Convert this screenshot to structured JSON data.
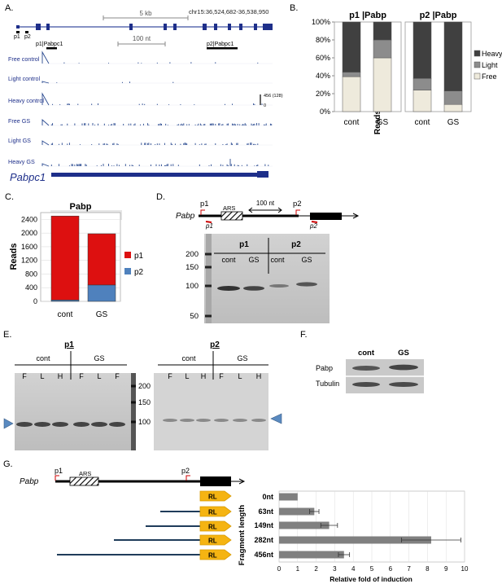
{
  "panel_letters": {
    "a": "A.",
    "b": "B.",
    "c": "C.",
    "d": "D.",
    "e": "E.",
    "f": "F.",
    "g": "G."
  },
  "panel_a": {
    "coords": "chr15:36,524,682-36,538,950",
    "scale_5kb": "5 kb",
    "scale_100nt": "100 nt",
    "p1": "p1",
    "p2": "p2",
    "p1_label": "p1|Pabpc1",
    "p2_label": "p2|Pabpc1",
    "tracks": [
      "Free control",
      "Light control",
      "Heavy control",
      "Free GS",
      "Light GS",
      "Heavy GS"
    ],
    "track_scale_max": "456 (128)",
    "track_scale_min": "0",
    "gene": "Pabpc1"
  },
  "panel_b": {
    "ylabel": "Reads percentage",
    "yticks": [
      "100%",
      "80%",
      "60%",
      "40%",
      "20%",
      "0%"
    ],
    "legend": [
      "Heavy",
      "Light",
      "Free"
    ],
    "colors": {
      "heavy": "#404040",
      "light": "#8c8c8c",
      "free": "#eeeadc"
    }
  },
  "panel_c": {
    "title": "Pabp",
    "ylabel": "Reads",
    "yticks": [
      "2400",
      "2000",
      "1600",
      "1200",
      "800",
      "400",
      "0"
    ],
    "legend": [
      "p1",
      "p2"
    ],
    "colors": {
      "p1": "#dd1010",
      "p2": "#4f81bd"
    }
  },
  "panel_d": {
    "gene": "Pabp",
    "p1": "p1",
    "p2": "p2",
    "p1i": "p1",
    "p2i": "p2",
    "ars": "ARS",
    "scale": "100 nt",
    "group1": "p1",
    "group2": "p2",
    "lanes": [
      "cont",
      "GS",
      "cont",
      "GS"
    ],
    "markers": [
      "200",
      "150",
      "100",
      "50"
    ]
  },
  "panel_e": {
    "p1": "p1",
    "p2": "p2",
    "cont": "cont",
    "gs": "GS",
    "lanes_p1": [
      "F",
      "L",
      "H",
      "F",
      "L",
      "F"
    ],
    "lanes_p2": [
      "F",
      "L",
      "H",
      "F",
      "L",
      "H"
    ],
    "markers": [
      "200",
      "150",
      "100"
    ]
  },
  "panel_f": {
    "cols": [
      "cont",
      "GS"
    ],
    "rows": [
      "Pabp",
      "Tubulin"
    ]
  },
  "panel_g": {
    "gene": "Pabp",
    "p1": "p1",
    "p2": "p2",
    "ars": "ARS",
    "rl": "RL",
    "ylabel": "Fragment length",
    "xlabel": "Relative fold of induction",
    "xticks": [
      "0",
      "1",
      "2",
      "3",
      "4",
      "5",
      "6",
      "7",
      "8",
      "9",
      "10"
    ]
  },
  "chart_data": [
    {
      "type": "bar",
      "title": "p1 |Pabp",
      "stacked": true,
      "categories": [
        "cont",
        "GS"
      ],
      "series": [
        {
          "name": "Free",
          "values": [
            39,
            60
          ]
        },
        {
          "name": "Light",
          "values": [
            5,
            20
          ]
        },
        {
          "name": "Heavy",
          "values": [
            56,
            20
          ]
        }
      ],
      "ylabel": "Reads percentage",
      "ylim": [
        0,
        100
      ]
    },
    {
      "type": "bar",
      "title": "p2 |Pabp",
      "stacked": true,
      "categories": [
        "cont",
        "GS"
      ],
      "series": [
        {
          "name": "Free",
          "values": [
            24,
            8
          ]
        },
        {
          "name": "Light",
          "values": [
            13,
            15
          ]
        },
        {
          "name": "Heavy",
          "values": [
            63,
            77
          ]
        }
      ],
      "ylabel": "Reads percentage",
      "ylim": [
        0,
        100
      ]
    },
    {
      "type": "bar",
      "title": "Pabp",
      "stacked": true,
      "categories": [
        "cont",
        "GS"
      ],
      "series": [
        {
          "name": "p1",
          "values": [
            2460,
            1500
          ]
        },
        {
          "name": "p2",
          "values": [
            40,
            480
          ]
        }
      ],
      "ylabel": "Reads",
      "ylim": [
        0,
        2600
      ]
    },
    {
      "type": "bar",
      "orientation": "horizontal",
      "categories": [
        "0nt",
        "63nt",
        "149nt",
        "282nt",
        "456nt"
      ],
      "values": [
        1.0,
        1.9,
        2.7,
        8.2,
        3.5
      ],
      "errors": [
        0,
        0.25,
        0.45,
        1.6,
        0.3
      ],
      "xlabel": "Relative fold of induction",
      "ylabel": "Fragment length",
      "xlim": [
        0,
        10
      ]
    }
  ]
}
